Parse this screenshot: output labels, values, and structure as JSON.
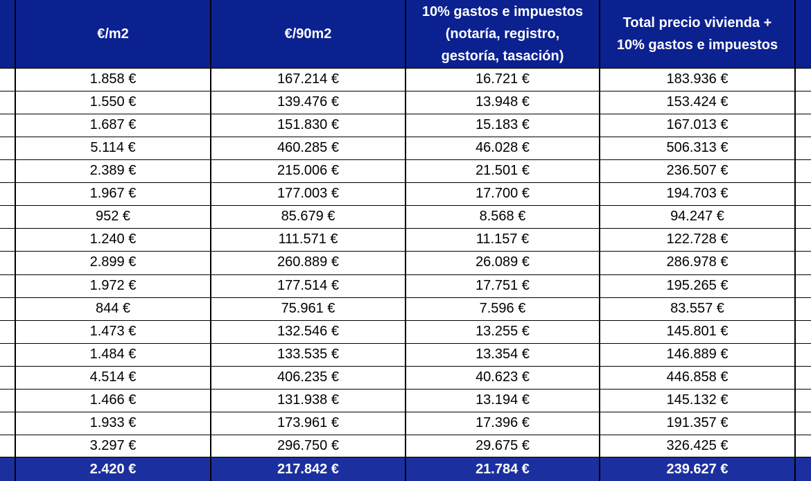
{
  "table": {
    "header": [
      [
        "€/m2"
      ],
      [
        "€/90m2"
      ],
      [
        "10% gastos e impuestos",
        "(notaría, registro,",
        "gestoría, tasación)"
      ],
      [
        "Total precio vivienda +",
        "10% gastos e impuestos"
      ]
    ],
    "rows": [
      [
        "1.858 €",
        "167.214 €",
        "16.721 €",
        "183.936 €"
      ],
      [
        "1.550 €",
        "139.476 €",
        "13.948 €",
        "153.424 €"
      ],
      [
        "1.687 €",
        "151.830 €",
        "15.183 €",
        "167.013 €"
      ],
      [
        "5.114 €",
        "460.285 €",
        "46.028 €",
        "506.313 €"
      ],
      [
        "2.389 €",
        "215.006 €",
        "21.501 €",
        "236.507 €"
      ],
      [
        "1.967 €",
        "177.003 €",
        "17.700 €",
        "194.703 €"
      ],
      [
        "952 €",
        "85.679 €",
        "8.568 €",
        "94.247 €"
      ],
      [
        "1.240 €",
        "111.571 €",
        "11.157 €",
        "122.728 €"
      ],
      [
        "2.899 €",
        "260.889 €",
        "26.089 €",
        "286.978 €"
      ],
      [
        "1.972 €",
        "177.514 €",
        "17.751 €",
        "195.265 €"
      ],
      [
        "844 €",
        "75.961 €",
        "7.596 €",
        "83.557 €"
      ],
      [
        "1.473 €",
        "132.546 €",
        "13.255 €",
        "145.801 €"
      ],
      [
        "1.484 €",
        "133.535 €",
        "13.354 €",
        "146.889 €"
      ],
      [
        "4.514 €",
        "406.235 €",
        "40.623 €",
        "446.858 €"
      ],
      [
        "1.466 €",
        "131.938 €",
        "13.194 €",
        "145.132 €"
      ],
      [
        "1.933 €",
        "173.961 €",
        "17.396 €",
        "191.357 €"
      ],
      [
        "3.297 €",
        "296.750 €",
        "29.675 €",
        "326.425 €"
      ]
    ],
    "totals": [
      "2.420 €",
      "217.842 €",
      "21.784 €",
      "239.627 €"
    ]
  }
}
